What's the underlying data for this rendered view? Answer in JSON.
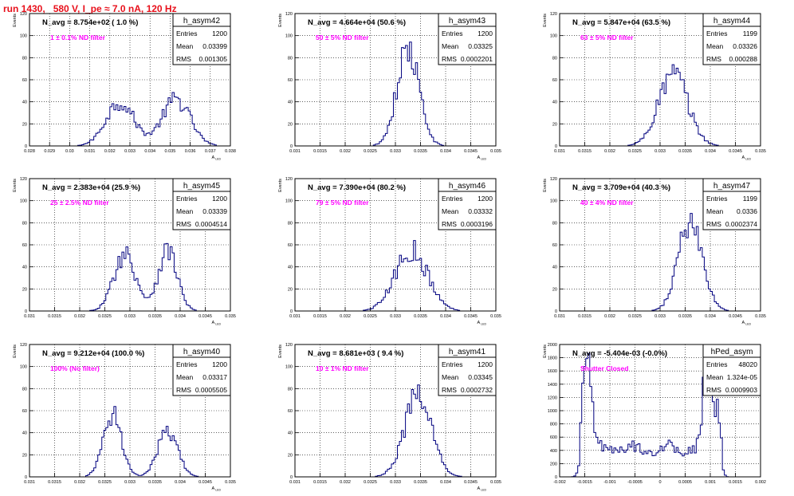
{
  "run_title": "run 1430,   580 V, I_pe ≈ 7.0 nA, 120 Hz",
  "colors": {
    "title": "#e8101b",
    "annotation": "#ff00ff",
    "histogram": "#00007f",
    "grid": "#000000"
  },
  "chart_data": [
    {
      "type": "histogram",
      "name": "h_asym42",
      "title": "N_avg = 8.754e+02 ( 1.0 %)",
      "annotation": "1 ± 0.1% ND filter",
      "stats": {
        "Entries": "1200",
        "Mean": "0.03399",
        "RMS": "0.001305"
      },
      "ylabel": "Events",
      "xlabel": "A_LED",
      "xlim": [
        0.028,
        0.038
      ],
      "ylim": [
        0,
        120
      ],
      "grid": true,
      "xticks": [
        "0.028",
        "0.029",
        "0.03",
        "0.031",
        "0.032",
        "0.033",
        "0.034",
        "0.035",
        "0.036",
        "0.037",
        "0.038"
      ],
      "yticks": [
        "0",
        "20",
        "40",
        "60",
        "80",
        "100",
        "120"
      ],
      "peaks": [
        [
          0.0325,
          40,
          0.0007
        ],
        [
          0.0353,
          42,
          0.0007
        ]
      ]
    },
    {
      "type": "histogram",
      "name": "h_asym43",
      "title": "N_avg = 4.664e+04 (50.6 %)",
      "annotation": "50 ± 5% ND filter",
      "stats": {
        "Entries": "1200",
        "Mean": "0.03325",
        "RMS": "0.0002201"
      },
      "ylabel": "Events",
      "xlabel": "A_LED",
      "xlim": [
        0.031,
        0.035
      ],
      "ylim": [
        0,
        120
      ],
      "grid": true,
      "xticks": [
        "0.031",
        "0.0315",
        "0.032",
        "0.0325",
        "0.033",
        "0.0335",
        "0.034",
        "0.0345",
        "0.035"
      ],
      "yticks": [
        "0",
        "20",
        "40",
        "60",
        "80",
        "100",
        "120"
      ],
      "peaks": [
        [
          0.03325,
          87,
          0.00022
        ]
      ]
    },
    {
      "type": "histogram",
      "name": "h_asym44",
      "title": "N_avg = 5.847e+04 (63.5 %)",
      "annotation": "63 ± 5% ND filter",
      "stats": {
        "Entries": "1199",
        "Mean": "0.03326",
        "RMS": "0.000288"
      },
      "ylabel": "Events",
      "xlabel": "A_LED",
      "xlim": [
        0.031,
        0.035
      ],
      "ylim": [
        0,
        120
      ],
      "grid": true,
      "xticks": [
        "0.031",
        "0.0315",
        "0.032",
        "0.0325",
        "0.033",
        "0.0335",
        "0.034",
        "0.0345",
        "0.035"
      ],
      "yticks": [
        "0",
        "20",
        "40",
        "60",
        "80",
        "100",
        "120"
      ],
      "peaks": [
        [
          0.03326,
          65,
          0.00029
        ]
      ]
    },
    {
      "type": "histogram",
      "name": "h_asym45",
      "title": "N_avg = 2.383e+04 (25.9 %)",
      "annotation": "25 ± 2.5% ND filter",
      "stats": {
        "Entries": "1200",
        "Mean": "0.03339",
        "RMS": "0.0004514"
      },
      "ylabel": "Events",
      "xlabel": "A_LED",
      "xlim": [
        0.031,
        0.035
      ],
      "ylim": [
        0,
        120
      ],
      "grid": true,
      "xticks": [
        "0.031",
        "0.0315",
        "0.032",
        "0.0325",
        "0.033",
        "0.0335",
        "0.034",
        "0.0345",
        "0.035"
      ],
      "yticks": [
        "0",
        "20",
        "40",
        "60",
        "80",
        "100",
        "120"
      ],
      "peaks": [
        [
          0.0329,
          52,
          0.00022
        ],
        [
          0.03375,
          55,
          0.00019
        ]
      ]
    },
    {
      "type": "histogram",
      "name": "h_asym46",
      "title": "N_avg = 7.390e+04 (80.2 %)",
      "annotation": "79 ± 5% ND filter",
      "stats": {
        "Entries": "1200",
        "Mean": "0.03332",
        "RMS": "0.0003196"
      },
      "ylabel": "Events",
      "xlabel": "A_LED",
      "xlim": [
        0.031,
        0.035
      ],
      "ylim": [
        0,
        120
      ],
      "grid": true,
      "xticks": [
        "0.031",
        "0.0315",
        "0.032",
        "0.0325",
        "0.033",
        "0.0335",
        "0.034",
        "0.0345",
        "0.035"
      ],
      "yticks": [
        "0",
        "20",
        "40",
        "60",
        "80",
        "100",
        "120"
      ],
      "peaks": [
        [
          0.03332,
          55,
          0.00032
        ]
      ]
    },
    {
      "type": "histogram",
      "name": "h_asym47",
      "title": "N_avg = 3.709e+04 (40.3 %)",
      "annotation": "40 ± 4% ND filter",
      "stats": {
        "Entries": "1199",
        "Mean": "0.0336",
        "RMS": "0.0002374"
      },
      "ylabel": "Events",
      "xlabel": "A_LED",
      "xlim": [
        0.031,
        0.035
      ],
      "ylim": [
        0,
        120
      ],
      "grid": true,
      "xticks": [
        "0.031",
        "0.0315",
        "0.032",
        "0.0325",
        "0.033",
        "0.0335",
        "0.034",
        "0.0345",
        "0.035"
      ],
      "yticks": [
        "0",
        "20",
        "40",
        "60",
        "80",
        "100",
        "120"
      ],
      "peaks": [
        [
          0.0336,
          80,
          0.00024
        ]
      ]
    },
    {
      "type": "histogram",
      "name": "h_asym40",
      "title": "N_avg = 9.212e+04 (100.0 %)",
      "annotation": "100% (No filter)",
      "stats": {
        "Entries": "1200",
        "Mean": "0.03317",
        "RMS": "0.0005505"
      },
      "ylabel": "Events",
      "xlabel": "A_LED",
      "xlim": [
        0.031,
        0.035
      ],
      "ylim": [
        0,
        120
      ],
      "grid": true,
      "xticks": [
        "0.031",
        "0.0315",
        "0.032",
        "0.0325",
        "0.033",
        "0.0335",
        "0.034",
        "0.0345",
        "0.035"
      ],
      "yticks": [
        "0",
        "20",
        "40",
        "60",
        "80",
        "100",
        "120"
      ],
      "peaks": [
        [
          0.03265,
          58,
          0.00018
        ],
        [
          0.03375,
          40,
          0.0002
        ]
      ]
    },
    {
      "type": "histogram",
      "name": "h_asym41",
      "title": "N_avg = 8.681e+03 ( 9.4 %)",
      "annotation": "10 ± 1% ND filter",
      "stats": {
        "Entries": "1200",
        "Mean": "0.03345",
        "RMS": "0.0002732"
      },
      "ylabel": "Events",
      "xlabel": "A_LED",
      "xlim": [
        0.031,
        0.035
      ],
      "ylim": [
        0,
        120
      ],
      "grid": true,
      "xticks": [
        "0.031",
        "0.0315",
        "0.032",
        "0.0325",
        "0.033",
        "0.0335",
        "0.034",
        "0.0345",
        "0.035"
      ],
      "yticks": [
        "0",
        "20",
        "40",
        "60",
        "80",
        "100",
        "120"
      ],
      "peaks": [
        [
          0.03345,
          72,
          0.00027
        ]
      ]
    },
    {
      "type": "histogram",
      "name": "hPed_asym",
      "title": "N_avg = -5.404e-03 (-0.0%)",
      "annotation": "Shutter Closed",
      "stats": {
        "Entries": "48020",
        "Mean": "1.324e-05",
        "RMS": "0.0009903"
      },
      "ylabel": "Events",
      "xlabel": "",
      "xlim": [
        -0.002,
        0.002
      ],
      "ylim": [
        0,
        2000
      ],
      "grid": true,
      "xticks": [
        "-0.002",
        "-0.0015",
        "-0.001",
        "-0.0005",
        "0",
        "0.0005",
        "0.001",
        "0.0015",
        "0.002"
      ],
      "yticks": [
        "0",
        "200",
        "400",
        "600",
        "800",
        "1000",
        "1200",
        "1400",
        "1600",
        "1800",
        "2000"
      ],
      "peaks": [
        [
          -0.00145,
          1550,
          8e-05
        ],
        [
          0.00095,
          1800,
          8e-05
        ],
        [
          0.00115,
          500,
          6e-05
        ]
      ],
      "baseline": 420
    }
  ]
}
